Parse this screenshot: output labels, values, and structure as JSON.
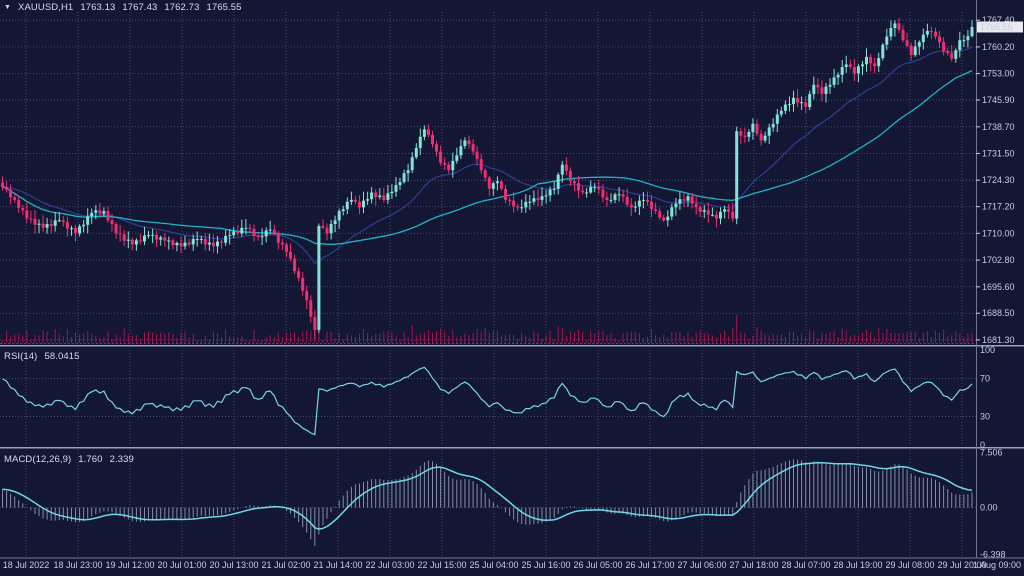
{
  "header": {
    "symbol": "XAUUSD,H1",
    "open": "1763.13",
    "high": "1767.43",
    "low": "1762.73",
    "close": "1765.55"
  },
  "panels": {
    "rsi": {
      "label": "RSI(14)",
      "value": "58.0415"
    },
    "macd": {
      "label": "MACD(12,26,9)",
      "main": "1.760",
      "signal": "2.339"
    }
  },
  "colors": {
    "background": "#131734",
    "grid": "#404a6e",
    "bull": "#82e4d7",
    "bear": "#f22e72",
    "ma_slow": "#1fb3c4",
    "ma_fast": "#2e3f92",
    "volume": "#a8134e",
    "volume_baseline": "#c2165c",
    "rsi_line": "#79d4e6",
    "macd_signal": "#6fd8e8",
    "macd_hist": "#9aa2bd",
    "axis_text": "#c7cce0",
    "separator": "#9aa0b6",
    "axis_border": "#70778f",
    "price_tag_bg": "#e9e9f0",
    "price_tag_text": "#15182e"
  },
  "chart_data": {
    "type": "candlestick",
    "title": "XAUUSD,H1",
    "symbol": "XAUUSD",
    "timeframe": "H1",
    "ohlc_current": {
      "open": 1763.13,
      "high": 1767.43,
      "low": 1762.73,
      "close": 1765.55
    },
    "closes": [
      1722.5,
      1721.8,
      1719.7,
      1719,
      1716.8,
      1716.2,
      1714,
      1713.9,
      1712.3,
      1712.6,
      1711.5,
      1712.5,
      1712,
      1713.5,
      1713.5,
      1713.1,
      1711.3,
      1711.4,
      1710,
      1711.9,
      1712.3,
      1714.6,
      1715.5,
      1716.2,
      1715.3,
      1716,
      1713.5,
      1712.5,
      1710,
      1709.8,
      1708,
      1708.3,
      1707,
      1708.1,
      1707.8,
      1709.4,
      1709.5,
      1709.6,
      1708.3,
      1708.9,
      1708,
      1708.1,
      1706.8,
      1707.4,
      1706.5,
      1707.5,
      1707,
      1708.5,
      1708.5,
      1708.5,
      1707,
      1707.5,
      1706.5,
      1707.8,
      1707.5,
      1709.3,
      1709.5,
      1710.5,
      1710,
      1711.5,
      1711.5,
      1711.2,
      1709.3,
      1709,
      1709.2,
      1710.8,
      1711,
      1710,
      1707.5,
      1707,
      1705,
      1703.2,
      1699.8,
      1698,
      1694.5,
      1692,
      1687.5,
      1684,
      1712,
      1711.5,
      1710,
      1712.5,
      1713.5,
      1716,
      1716.5,
      1718.5,
      1719,
      1718.5,
      1717,
      1718.8,
      1719.2,
      1721,
      1719.8,
      1720.2,
      1719,
      1720.8,
      1721.2,
      1723,
      1723.8,
      1726.2,
      1727,
      1730.5,
      1733,
      1736,
      1738,
      1736.5,
      1734,
      1732,
      1729,
      1728.5,
      1727,
      1729.5,
      1731,
      1733.5,
      1735,
      1734,
      1732,
      1730,
      1727,
      1725,
      1722,
      1723.5,
      1724,
      1722,
      1719,
      1718.8,
      1717.2,
      1717,
      1717,
      1718.5,
      1718.5,
      1719.5,
      1719,
      1720,
      1720.2,
      1721.8,
      1722,
      1725.8,
      1728.5,
      1726.8,
      1724,
      1723.5,
      1721.5,
      1721,
      1721,
      1722.5,
      1722.5,
      1721.8,
      1719.7,
      1719,
      1719,
      1720.5,
      1720.5,
      1719.8,
      1717.7,
      1717,
      1717.2,
      1718.8,
      1719,
      1718.5,
      1716.5,
      1716,
      1714.3,
      1713.5,
      1714.5,
      1717,
      1718,
      1719.2,
      1718.8,
      1720,
      1718,
      1717,
      1715.8,
      1716.2,
      1715,
      1715,
      1714,
      1715.8,
      1716.5,
      1715.8,
      1714,
      1737.5,
      1736.3,
      1736,
      1737.3,
      1739.5,
      1736.8,
      1735,
      1736.3,
      1738.5,
      1739.5,
      1742,
      1743,
      1744.7,
      1744.8,
      1746.5,
      1745.2,
      1745.3,
      1744,
      1747.5,
      1750,
      1749.3,
      1747.5,
      1749.5,
      1750,
      1752,
      1752.7,
      1754.8,
      1755.5,
      1754.8,
      1753,
      1755,
      1755.5,
      1757.5,
      1755.8,
      1755,
      1757.2,
      1760.8,
      1763,
      1765.3,
      1766.5,
      1764.8,
      1762,
      1760.5,
      1758,
      1760.3,
      1761.5,
      1763.5,
      1764.5,
      1764.3,
      1763,
      1761.5,
      1759,
      1758.5,
      1757,
      1759.3,
      1762,
      1762,
      1763.1,
      1765.55
    ],
    "high_extreme": {
      "bar": 220,
      "price": 1767.4
    },
    "low_extreme": {
      "bar": 77,
      "price": 1681.6
    },
    "price_axis": {
      "labels": [
        "1767.40",
        "1760.20",
        "1753.00",
        "1745.90",
        "1738.70",
        "1731.50",
        "1724.30",
        "1717.20",
        "1710.00",
        "1702.80",
        "1695.60",
        "1688.50",
        "1681.30"
      ],
      "min": 1681.3,
      "max": 1767.4,
      "current": 1765.55,
      "current_label": "1765.55"
    },
    "time_axis": {
      "labels": [
        "18 Jul 2022",
        "18 Jul 23:00",
        "19 Jul 12:00",
        "20 Jul 01:00",
        "20 Jul 13:00",
        "21 Jul 02:00",
        "21 Jul 14:00",
        "22 Jul 03:00",
        "22 Jul 15:00",
        "25 Jul 04:00",
        "25 Jul 16:00",
        "26 Jul 05:00",
        "26 Jul 17:00",
        "27 Jul 06:00",
        "27 Jul 18:00",
        "28 Jul 07:00",
        "28 Jul 19:00",
        "29 Jul 08:00",
        "29 Jul 20:00",
        "1 Aug 09:00"
      ]
    },
    "overlays": [
      {
        "name": "slow-moving-average",
        "type": "SMA",
        "period": 55
      },
      {
        "name": "fast-moving-average",
        "type": "EMA",
        "period": 24
      }
    ],
    "indicators": [
      {
        "name": "RSI",
        "params": "14",
        "value": 58.0415,
        "scale": {
          "labels": [
            "100",
            "70",
            "30",
            "0"
          ],
          "label_values": [
            100,
            70,
            30,
            0
          ],
          "min": 0,
          "max": 100,
          "levels": [
            70,
            30
          ]
        }
      },
      {
        "name": "MACD",
        "params": "12,26,9",
        "main": 1.76,
        "signal": 2.339,
        "scale": {
          "labels": [
            "7.506",
            "0.00",
            "-6.398"
          ],
          "label_values": [
            7.506,
            0,
            -6.398
          ],
          "min": -6.398,
          "max": 7.506
        }
      }
    ],
    "grid": true,
    "legend_position": "top-left"
  }
}
